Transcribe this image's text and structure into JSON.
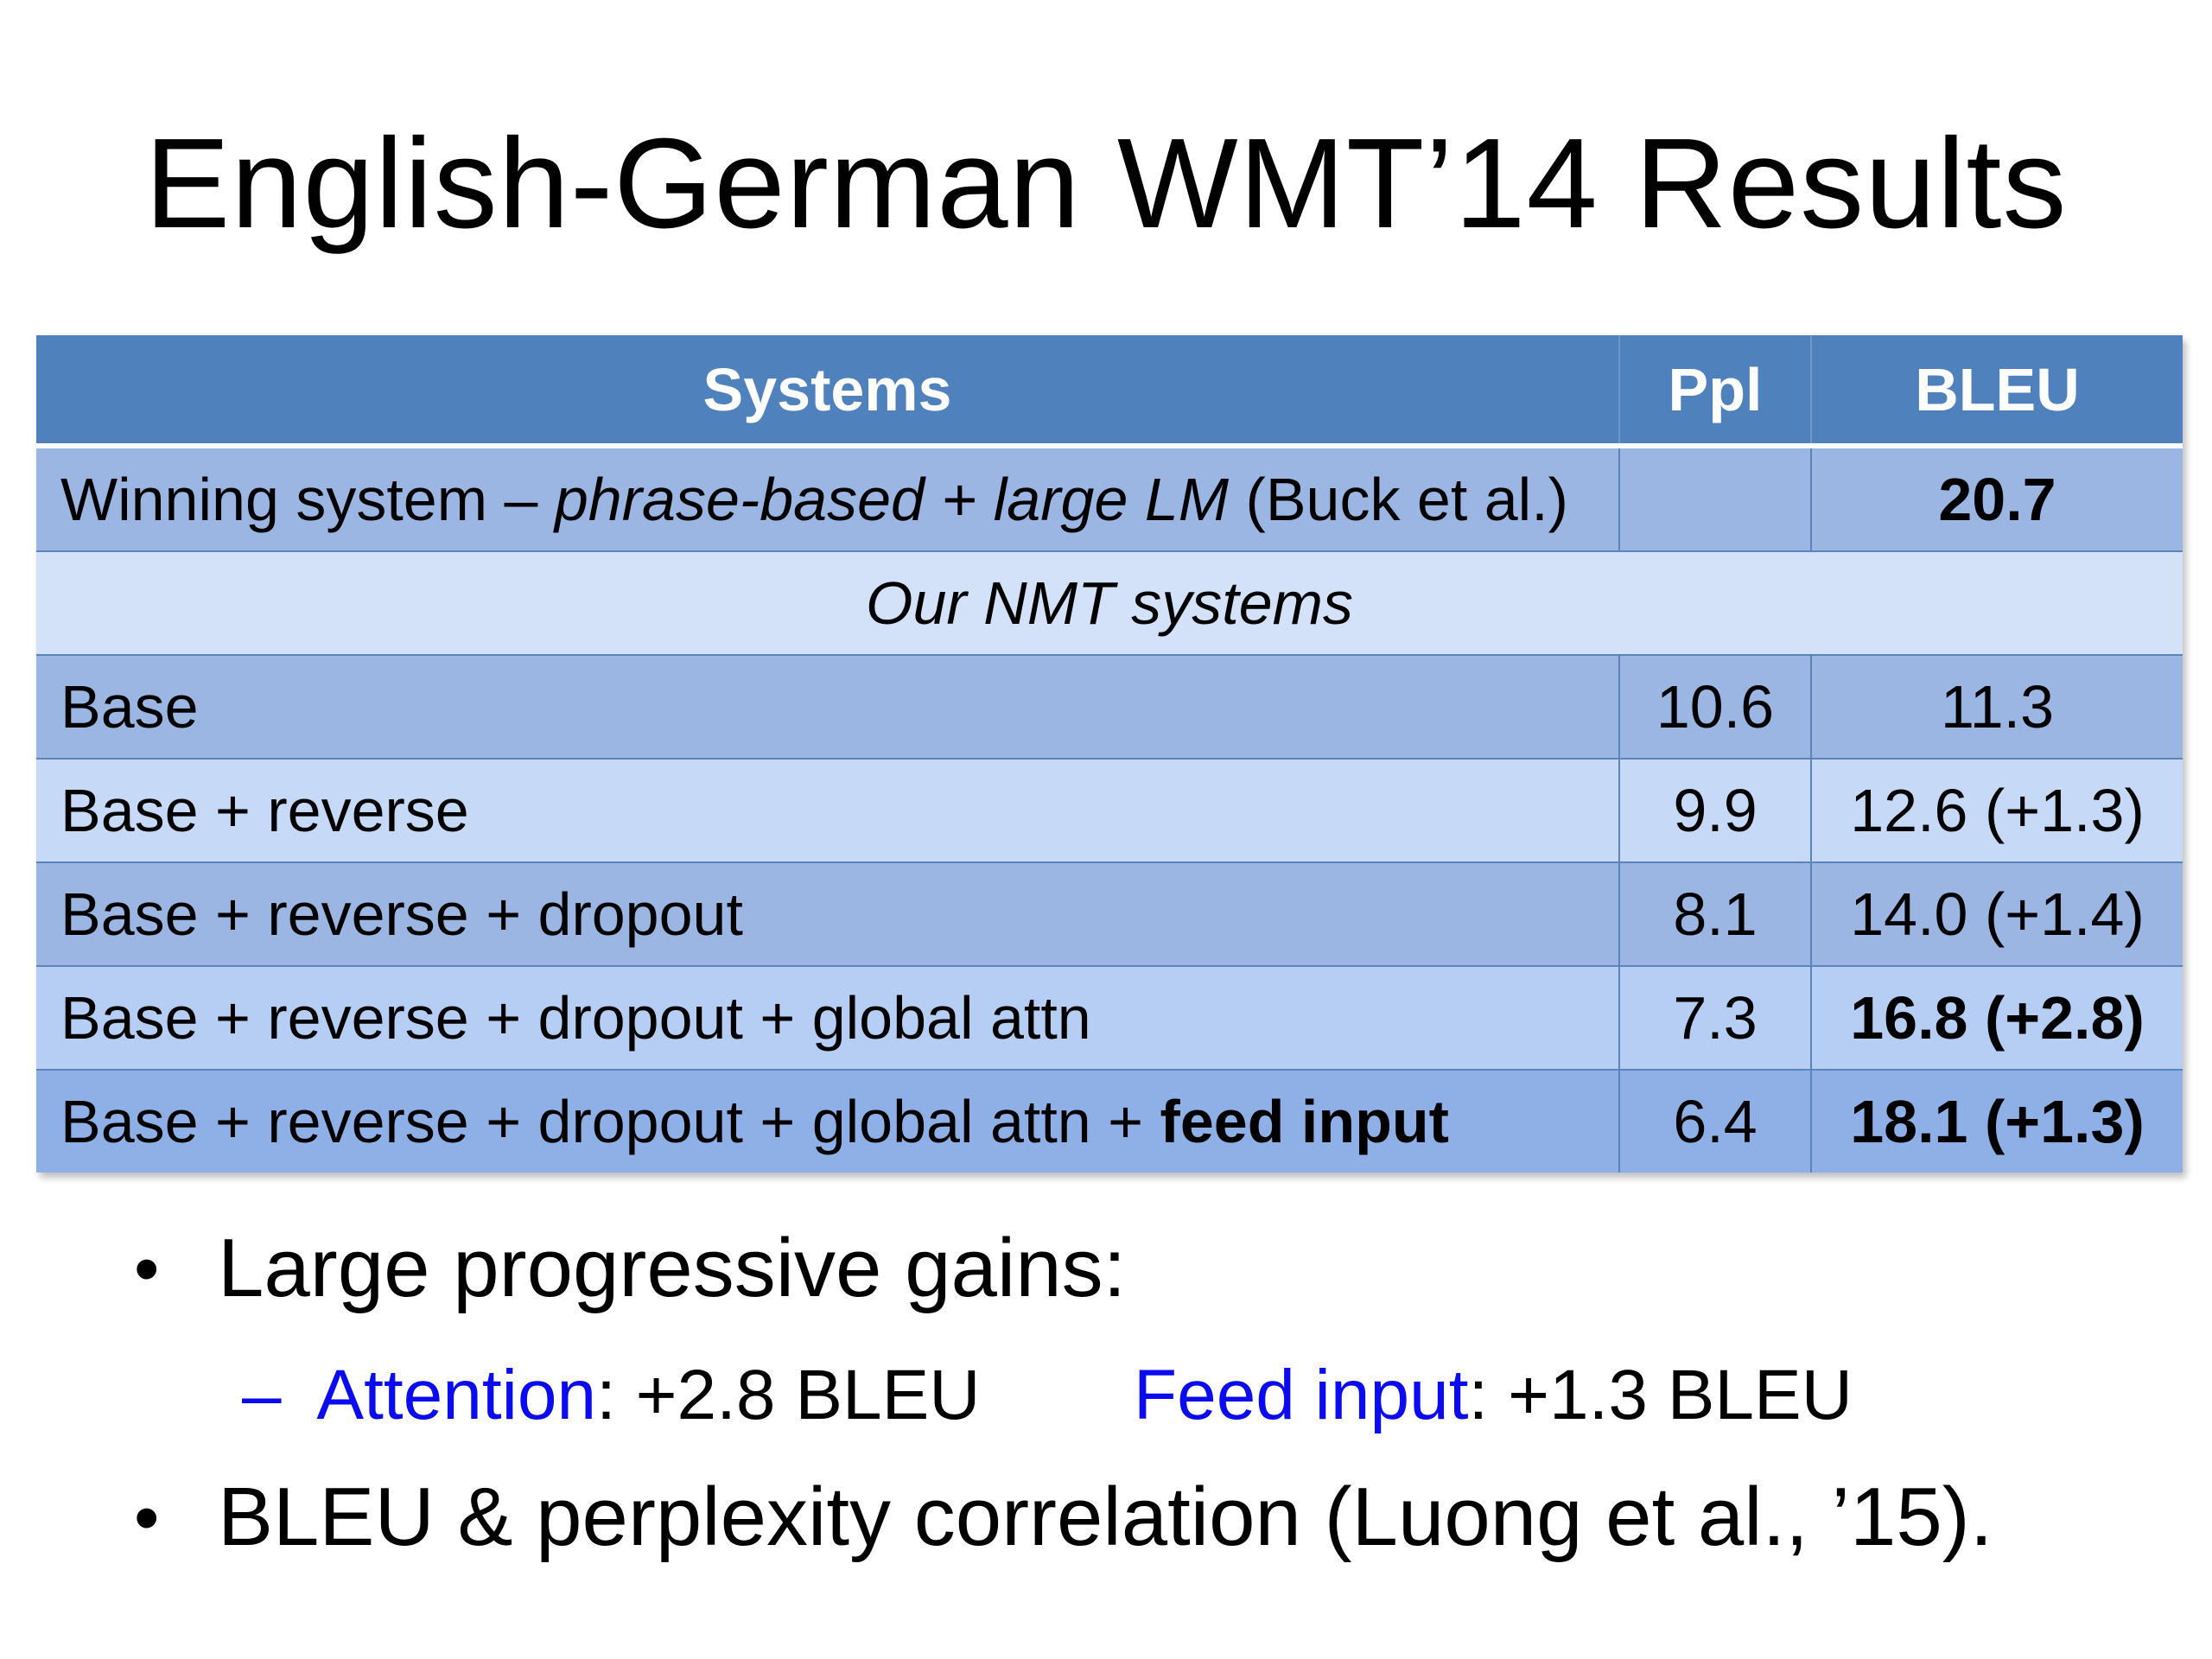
{
  "slide": {
    "title": "English-German WMT’14 Results"
  },
  "table": {
    "headers": {
      "systems": "Systems",
      "ppl": "Ppl",
      "bleu": "BLEU"
    },
    "winning": {
      "label_prefix": "Winning system – ",
      "label_italic": "phrase-based + large LM",
      "label_suffix": " (Buck et al.)",
      "ppl": "",
      "bleu": "20.7"
    },
    "section_label": "Our NMT systems",
    "rows": [
      {
        "system": "Base",
        "ppl": "10.6",
        "bleu": "11.3"
      },
      {
        "system": "Base + reverse",
        "ppl": "9.9",
        "bleu": "12.6 (+1.3)"
      },
      {
        "system": "Base + reverse + dropout",
        "ppl": "8.1",
        "bleu": "14.0 (+1.4)"
      },
      {
        "system": "Base + reverse + dropout + global attn",
        "ppl": "7.3",
        "bleu": "16.8 (+2.8)"
      },
      {
        "system_prefix": "Base + reverse + dropout + global attn + ",
        "system_bold": "feed input",
        "ppl": "6.4",
        "bleu": "18.1 (+1.3)"
      }
    ]
  },
  "bullets": {
    "marker": "•",
    "first": "Large progressive gains:",
    "sub": {
      "dash": "–",
      "attention_label": "Attention",
      "attention_value": ": +2.8 BLEU",
      "feed_label": "Feed input",
      "feed_value": ": +1.3 BLEU"
    },
    "second": "BLEU & perplexity correlation (Luong et al., ’15)."
  },
  "colors": {
    "header_blue": "#4f81bd",
    "row_dark": "#9bb6e3",
    "row_light": "#c6d9f7",
    "highlight_blue": "#0b0bf0"
  }
}
